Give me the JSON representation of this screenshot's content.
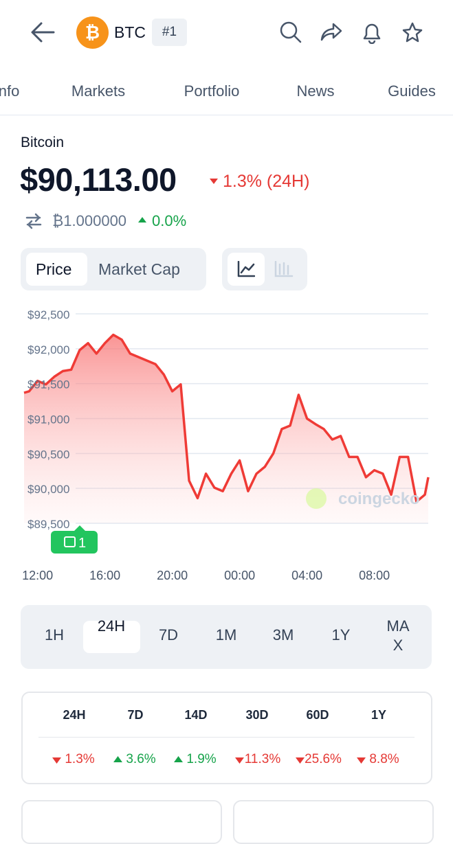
{
  "header": {
    "symbol": "BTC",
    "rank": "#1"
  },
  "tabs": [
    "Info",
    "Markets",
    "Portfolio",
    "News",
    "Guides"
  ],
  "coin": {
    "name": "Bitcoin",
    "price": "$90,113.00",
    "change": "1.3% (24H)",
    "btc_price": "₿1.000000",
    "btc_change": "0.0%"
  },
  "toggle": [
    "Price",
    "Market Cap"
  ],
  "chart_data": {
    "type": "line",
    "color": "#ef3b36",
    "grid": true,
    "x": [
      -0.8,
      -0.5,
      0,
      0.5,
      1,
      1.5,
      2,
      2.5,
      3,
      3.5,
      4,
      4.5,
      5,
      5.5,
      6,
      6.5,
      7,
      7.5,
      8,
      8.5,
      9,
      9.5,
      10,
      10.5,
      11,
      11.5,
      12,
      12.5,
      13,
      13.5,
      14,
      14.5,
      15,
      15.5,
      16,
      16.5,
      17,
      17.5,
      18,
      18.5,
      19,
      19.5,
      20,
      20.5,
      21,
      21.5,
      22,
      22.5,
      23,
      23.2
    ],
    "values": [
      91370,
      91390,
      91540,
      91490,
      91600,
      91680,
      91700,
      91980,
      92080,
      91930,
      92080,
      92200,
      92130,
      91930,
      91880,
      91830,
      91780,
      91630,
      91390,
      91490,
      90110,
      89860,
      90210,
      90010,
      89960,
      90210,
      90400,
      89960,
      90210,
      90310,
      90500,
      90850,
      90900,
      91340,
      91000,
      90920,
      90850,
      90700,
      90750,
      90450,
      90450,
      90160,
      90260,
      90210,
      89910,
      90450,
      90450,
      89810,
      89910,
      90160
    ],
    "xlim": [
      -0.8,
      23.2
    ],
    "xticks": [
      {
        "value": 0,
        "label": "12:00"
      },
      {
        "value": 4,
        "label": "16:00"
      },
      {
        "value": 8,
        "label": "20:00"
      },
      {
        "value": 12,
        "label": "00:00"
      },
      {
        "value": 16,
        "label": "04:00"
      },
      {
        "value": 20,
        "label": "08:00"
      }
    ],
    "ylim": [
      89500,
      92500
    ],
    "yticks": [
      {
        "value": 92500,
        "label": "$92,500"
      },
      {
        "value": 92000,
        "label": "$92,000"
      },
      {
        "value": 91500,
        "label": "$91,500"
      },
      {
        "value": 91000,
        "label": "$91,000"
      },
      {
        "value": 90500,
        "label": "$90,500"
      },
      {
        "value": 90000,
        "label": "$90,000"
      },
      {
        "value": 89500,
        "label": "$89,500"
      }
    ],
    "watermark": "coingecko",
    "news_badge": "1"
  },
  "ranges": [
    "1H",
    "24H",
    "7D",
    "1M",
    "3M",
    "1Y",
    "MAX"
  ],
  "active_range": 1,
  "performance": {
    "periods": [
      "24H",
      "7D",
      "14D",
      "30D",
      "60D",
      "1Y"
    ],
    "changes": [
      "1.3%",
      "3.6%",
      "1.9%",
      "11.3%",
      "25.6%",
      "8.8%"
    ],
    "directions": [
      "down",
      "up",
      "up",
      "down",
      "down",
      "down"
    ]
  }
}
